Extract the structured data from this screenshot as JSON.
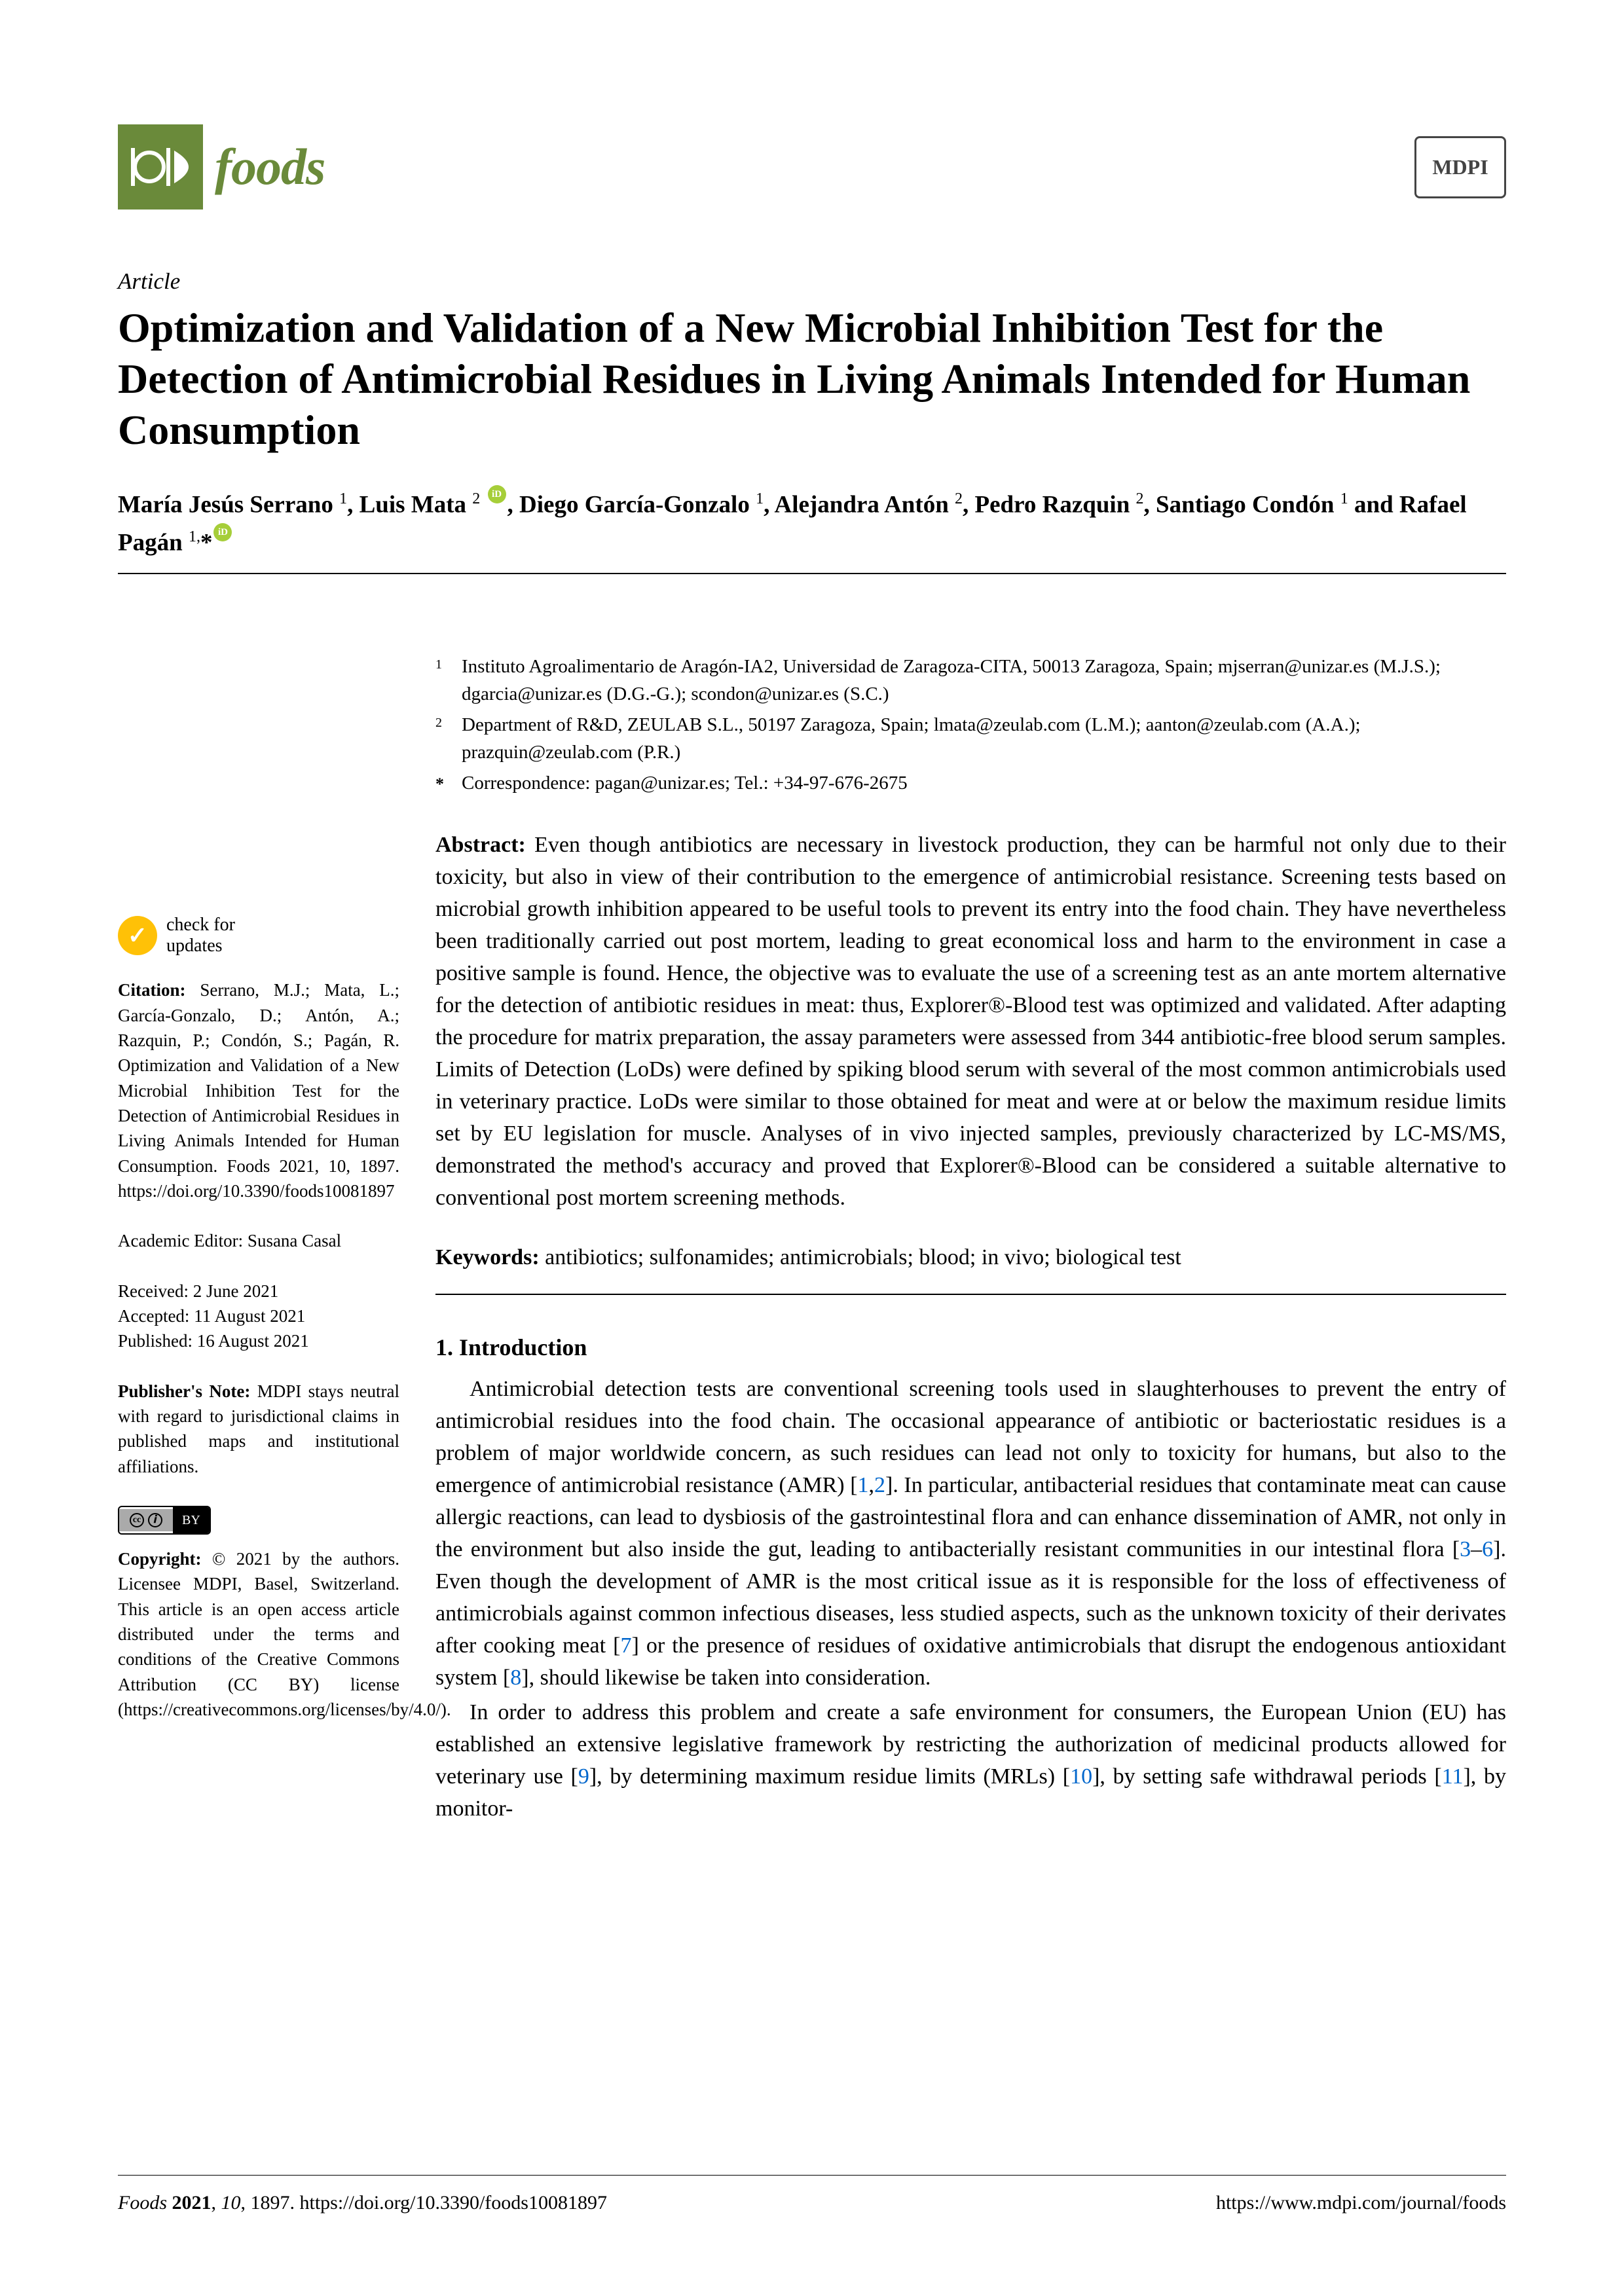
{
  "journal": {
    "name": "foods",
    "color": "#6a8a3a"
  },
  "publisher_logo": "MDPI",
  "article_type": "Article",
  "title": "Optimization and Validation of a New Microbial Inhibition Test for the Detection of Antimicrobial Residues in Living Animals Intended for Human Consumption",
  "authors_html": "María Jesús Serrano <sup>1</sup>, Luis Mata <sup>2</sup> <span class='orcid'></span>, Diego García-Gonzalo <sup>1</sup>, Alejandra Antón <sup>2</sup>, Pedro Razquin <sup>2</sup>, Santiago Condón <sup>1</sup> and Rafael Pagán <sup>1,</sup>*<span class='orcid'></span>",
  "affiliations": [
    {
      "num": "1",
      "text": "Instituto Agroalimentario de Aragón-IA2, Universidad de Zaragoza-CITA, 50013 Zaragoza, Spain; mjserran@unizar.es (M.J.S.); dgarcia@unizar.es (D.G.-G.); scondon@unizar.es (S.C.)"
    },
    {
      "num": "2",
      "text": "Department of R&D, ZEULAB S.L., 50197 Zaragoza, Spain; lmata@zeulab.com (L.M.); aanton@zeulab.com (A.A.); prazquin@zeulab.com (P.R.)"
    },
    {
      "num": "*",
      "text": "Correspondence: pagan@unizar.es; Tel.: +34-97-676-2675"
    }
  ],
  "abstract_label": "Abstract:",
  "abstract": "Even though antibiotics are necessary in livestock production, they can be harmful not only due to their toxicity, but also in view of their contribution to the emergence of antimicrobial resistance. Screening tests based on microbial growth inhibition appeared to be useful tools to prevent its entry into the food chain. They have nevertheless been traditionally carried out post mortem, leading to great economical loss and harm to the environment in case a positive sample is found. Hence, the objective was to evaluate the use of a screening test as an ante mortem alternative for the detection of antibiotic residues in meat: thus, Explorer®-Blood test was optimized and validated. After adapting the procedure for matrix preparation, the assay parameters were assessed from 344 antibiotic-free blood serum samples. Limits of Detection (LoDs) were defined by spiking blood serum with several of the most common antimicrobials used in veterinary practice. LoDs were similar to those obtained for meat and were at or below the maximum residue limits set by EU legislation for muscle. Analyses of in vivo injected samples, previously characterized by LC-MS/MS, demonstrated the method's accuracy and proved that Explorer®-Blood can be considered a suitable alternative to conventional post mortem screening methods.",
  "keywords_label": "Keywords:",
  "keywords": "antibiotics; sulfonamides; antimicrobials; blood; in vivo; biological test",
  "check_updates": "check for\nupdates",
  "citation_label": "Citation:",
  "citation": "Serrano, M.J.; Mata, L.; García-Gonzalo, D.; Antón, A.; Razquin, P.; Condón, S.; Pagán, R. Optimization and Validation of a New Microbial Inhibition Test for the Detection of Antimicrobial Residues in Living Animals Intended for Human Consumption. Foods 2021, 10, 1897. https://doi.org/10.3390/foods10081897",
  "editor_label": "Academic Editor: Susana Casal",
  "received": "Received: 2 June 2021",
  "accepted": "Accepted: 11 August 2021",
  "published": "Published: 16 August 2021",
  "publishers_note_label": "Publisher's Note:",
  "publishers_note": "MDPI stays neutral with regard to jurisdictional claims in published maps and institutional affiliations.",
  "copyright_label": "Copyright:",
  "copyright": "© 2021 by the authors. Licensee MDPI, Basel, Switzerland. This article is an open access article distributed under the terms and conditions of the Creative Commons Attribution (CC BY) license (https://creativecommons.org/licenses/by/4.0/).",
  "section1_heading": "1. Introduction",
  "para1_html": "Antimicrobial detection tests are conventional screening tools used in slaughterhouses to prevent the entry of antimicrobial residues into the food chain. The occasional appearance of antibiotic or bacteriostatic residues is a problem of major worldwide concern, as such residues can lead not only to toxicity for humans, but also to the emergence of antimicrobial resistance (AMR) [<span class='ref-link'>1</span>,<span class='ref-link'>2</span>]. In particular, antibacterial residues that contaminate meat can cause allergic reactions, can lead to dysbiosis of the gastrointestinal flora and can enhance dissemination of AMR, not only in the environment but also inside the gut, leading to antibacterially resistant communities in our intestinal flora [<span class='ref-link'>3</span>–<span class='ref-link'>6</span>]. Even though the development of AMR is the most critical issue as it is responsible for the loss of effectiveness of antimicrobials against common infectious diseases, less studied aspects, such as the unknown toxicity of their derivates after cooking meat [<span class='ref-link'>7</span>] or the presence of residues of oxidative antimicrobials that disrupt the endogenous antioxidant system [<span class='ref-link'>8</span>], should likewise be taken into consideration.",
  "para2_html": "In order to address this problem and create a safe environment for consumers, the European Union (EU) has established an extensive legislative framework by restricting the authorization of medicinal products allowed for veterinary use [<span class='ref-link'>9</span>], by determining maximum residue limits (MRLs) [<span class='ref-link'>10</span>], by setting safe withdrawal periods [<span class='ref-link'>11</span>], by monitor-",
  "footer_left_html": "<em>Foods</em> <strong>2021</strong>, <em>10</em>, 1897. https://doi.org/10.3390/foods10081897",
  "footer_right": "https://www.mdpi.com/journal/foods"
}
